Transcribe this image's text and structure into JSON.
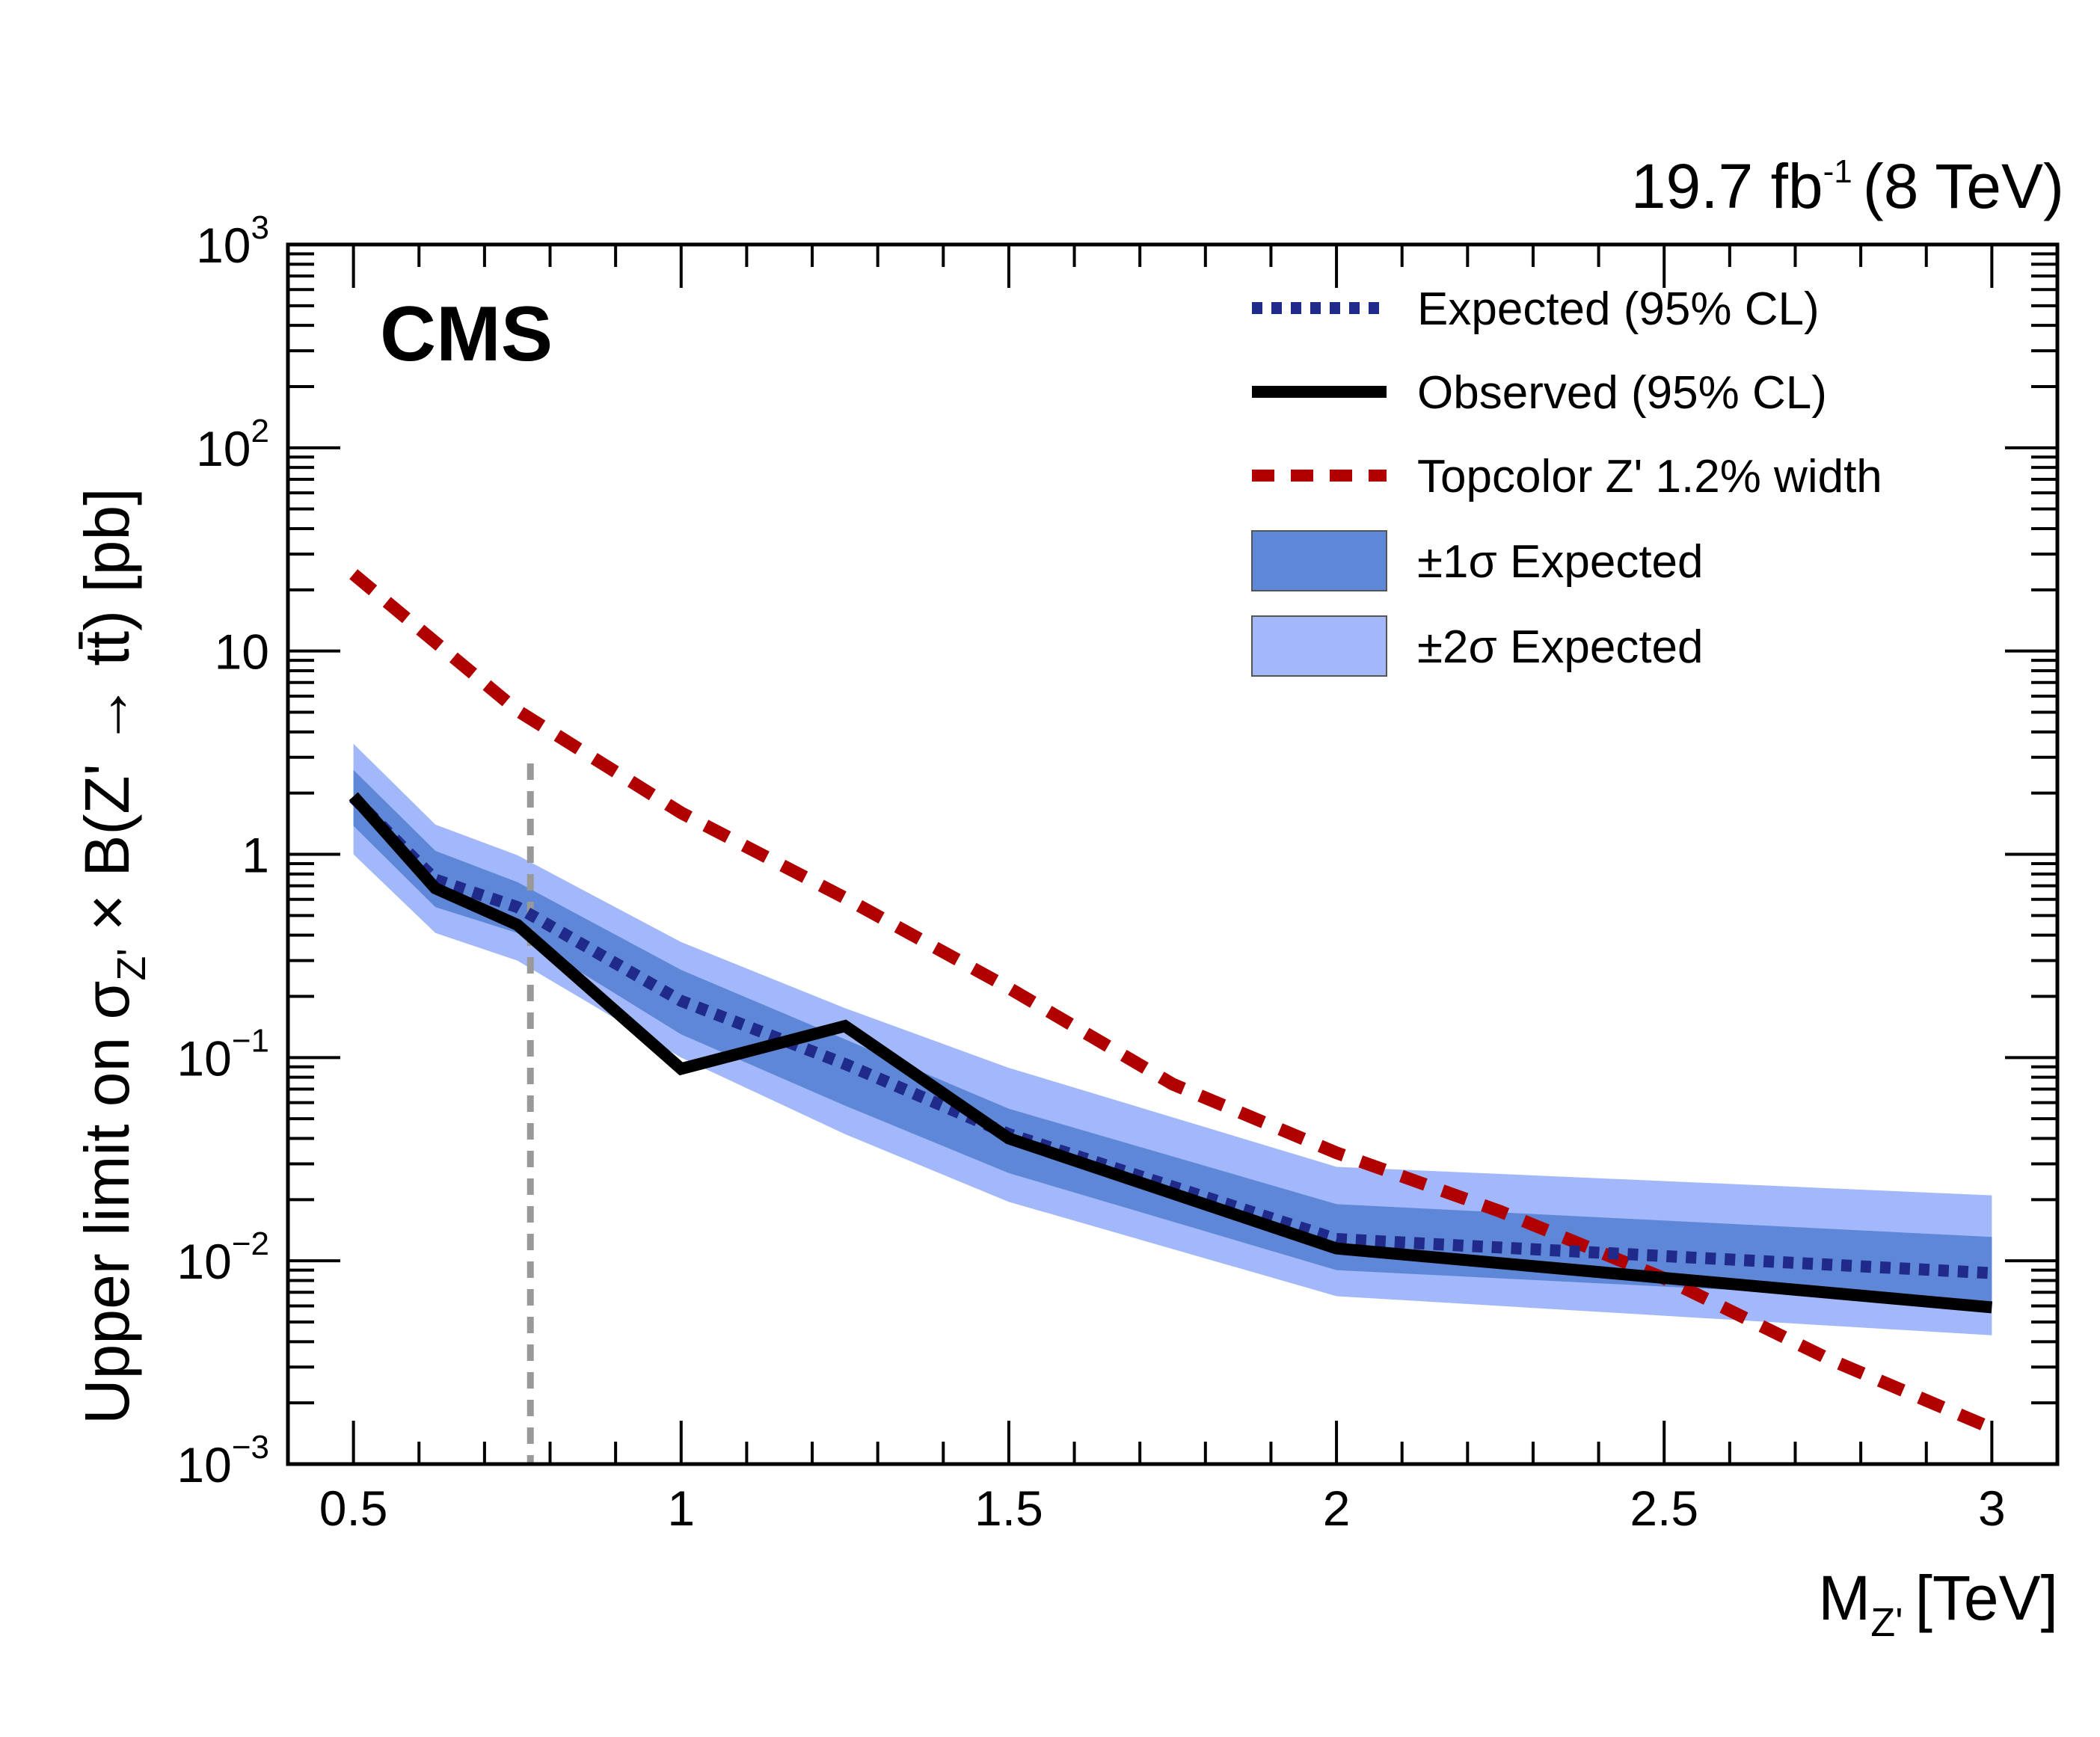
{
  "header": {
    "experiment_label": "CMS",
    "lumi_value": "19.7 fb",
    "lumi_exponent": "-1",
    "energy_label": "(8 TeV)"
  },
  "chart_data": {
    "type": "line",
    "title": "",
    "xlabel": "M_Z' [TeV]",
    "xlabel_main": "M",
    "xlabel_sub": "Z'",
    "xlabel_unit": "[TeV]",
    "ylabel": "Upper limit on σ_Z' × B(Z' → tt̄) [pb]",
    "ylabel_parts": {
      "prefix": "Upper limit on σ",
      "sub": "Z'",
      "suffix": " × B(Z' → tt̄) [pb]"
    },
    "xlim": [
      0.4,
      3.1
    ],
    "ylim": [
      0.001,
      1000
    ],
    "yscale": "log",
    "grid": false,
    "legend_position": "top-right",
    "x_ticks": [
      {
        "value": 0.5,
        "label": "0.5"
      },
      {
        "value": 1.0,
        "label": "1"
      },
      {
        "value": 1.5,
        "label": "1.5"
      },
      {
        "value": 2.0,
        "label": "2"
      },
      {
        "value": 2.5,
        "label": "2.5"
      },
      {
        "value": 3.0,
        "label": "3"
      }
    ],
    "y_ticks": [
      {
        "value": 1000,
        "base": "10",
        "exp": "3"
      },
      {
        "value": 100,
        "base": "10",
        "exp": "2"
      },
      {
        "value": 10,
        "base": "10",
        "exp": ""
      },
      {
        "value": 1,
        "base": "1",
        "exp": ""
      },
      {
        "value": 0.1,
        "base": "10",
        "exp": "−1"
      },
      {
        "value": 0.01,
        "base": "10",
        "exp": "−2"
      },
      {
        "value": 0.001,
        "base": "10",
        "exp": "−3"
      }
    ],
    "x": [
      0.5,
      0.625,
      0.75,
      1.0,
      1.25,
      1.5,
      2.0,
      3.0
    ],
    "series": [
      {
        "name": "Expected (95% CL)",
        "style": "dotted",
        "color": "#1f2a8a",
        "values": [
          1.9,
          0.75,
          0.55,
          0.19,
          0.093,
          0.042,
          0.0128,
          0.0087
        ]
      },
      {
        "name": "Observed (95% CL)",
        "style": "solid",
        "color": "#000000",
        "values": [
          1.93,
          0.68,
          0.45,
          0.088,
          0.143,
          0.04,
          0.0115,
          0.0059
        ]
      }
    ],
    "bands": [
      {
        "name": "±2σ Expected",
        "color": "#a2b8fa",
        "upper": [
          3.5,
          1.4,
          0.99,
          0.37,
          0.175,
          0.089,
          0.029,
          0.021
        ],
        "lower": [
          1.0,
          0.41,
          0.3,
          0.1,
          0.042,
          0.0195,
          0.0067,
          0.0043
        ]
      },
      {
        "name": "±1σ Expected",
        "color": "#5f87d8",
        "upper": [
          2.6,
          1.04,
          0.73,
          0.27,
          0.123,
          0.056,
          0.019,
          0.0131
        ],
        "lower": [
          1.38,
          0.55,
          0.41,
          0.13,
          0.058,
          0.027,
          0.009,
          0.0062
        ]
      }
    ],
    "theory": {
      "name": "Topcolor Z' 1.2% width",
      "style": "dashed",
      "color": "#b00000",
      "x": [
        0.5,
        0.75,
        1.0,
        1.25,
        1.5,
        1.75,
        2.0,
        2.25,
        2.5,
        2.75,
        3.0
      ],
      "values": [
        23.9,
        5.1,
        1.6,
        0.61,
        0.22,
        0.074,
        0.034,
        0.0175,
        0.0082,
        0.0033,
        0.0015
      ]
    },
    "reference_line": {
      "x": 0.77,
      "y_top": 2.8,
      "style": "dashed",
      "color": "#999999"
    },
    "legend": [
      {
        "label": "Expected (95% CL)",
        "kind": "dotted-line",
        "color": "#1f2a8a"
      },
      {
        "label": "Observed (95% CL)",
        "kind": "solid-line",
        "color": "#000000"
      },
      {
        "label": "Topcolor Z' 1.2% width",
        "kind": "dashed-line",
        "color": "#b00000"
      },
      {
        "label": "±1σ Expected",
        "kind": "box",
        "color": "#5f87d8"
      },
      {
        "label": "±2σ Expected",
        "kind": "box",
        "color": "#a2b8fa"
      }
    ]
  }
}
